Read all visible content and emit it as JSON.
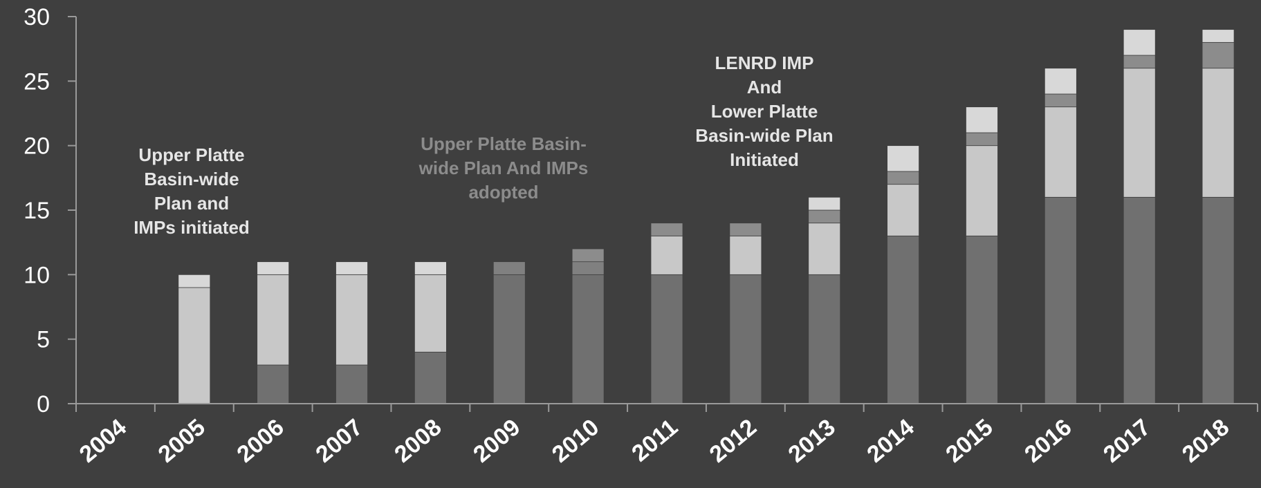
{
  "chart_data": {
    "type": "bar",
    "stacked": true,
    "categories": [
      "2004",
      "2005",
      "2006",
      "2007",
      "2008",
      "2009",
      "2010",
      "2011",
      "2012",
      "2013",
      "2014",
      "2015",
      "2016",
      "2017",
      "2018"
    ],
    "series": [
      {
        "values": [
          0,
          0,
          3,
          3,
          4,
          10,
          10,
          10,
          10,
          10,
          13,
          13,
          16,
          16,
          16
        ]
      },
      {
        "values": [
          0,
          9,
          7,
          7,
          6,
          0,
          0,
          3,
          3,
          4,
          4,
          7,
          7,
          10,
          10
        ]
      },
      {
        "values": [
          0,
          0,
          0,
          0,
          0,
          1,
          1,
          0,
          0,
          0,
          0,
          0,
          0,
          0,
          0
        ]
      },
      {
        "values": [
          0,
          0,
          0,
          0,
          0,
          0,
          1,
          1,
          1,
          1,
          1,
          1,
          1,
          1,
          2
        ]
      },
      {
        "values": [
          0,
          1,
          1,
          1,
          1,
          0,
          0,
          0,
          0,
          1,
          2,
          2,
          2,
          2,
          1
        ]
      }
    ],
    "series_colors": [
      "#707070",
      "#c8c8c8",
      "#808080",
      "#8c8c8c",
      "#d8d8d8"
    ],
    "ylim": [
      0,
      30
    ],
    "yticks": [
      "0",
      "5",
      "10",
      "15",
      "20",
      "25",
      "30"
    ],
    "xlabel": "",
    "ylabel": "",
    "grid": false,
    "annotations": [
      {
        "lines": [
          "Upper Platte",
          "Basin-wide",
          "Plan and",
          "IMPs initiated"
        ],
        "color": "#e6e6e6"
      },
      {
        "lines": [
          "Upper Platte  Basin-",
          "wide Plan And IMPs",
          "adopted"
        ],
        "color": "#8c8c8c"
      },
      {
        "lines": [
          "LENRD IMP",
          "And",
          "Lower Platte",
          "Basin-wide Plan",
          "Initiated"
        ],
        "color": "#e6e6e6"
      }
    ]
  }
}
